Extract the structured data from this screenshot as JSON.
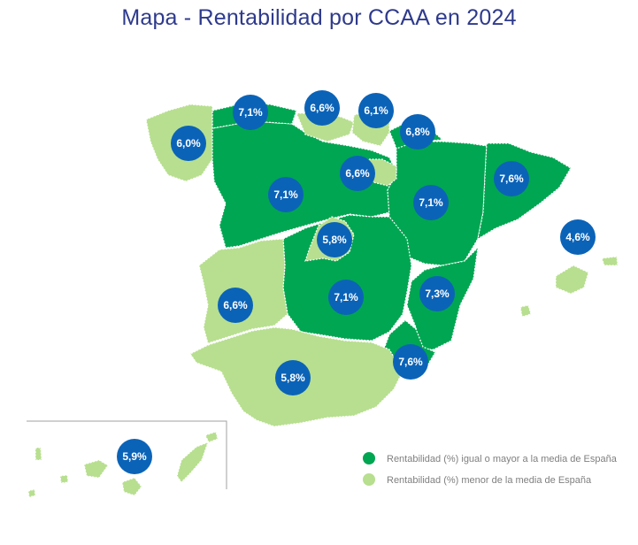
{
  "title": "Mapa - Rentabilidad por CCAA en 2024",
  "colors": {
    "above_or_equal": "#00a651",
    "below": "#b7df8f",
    "marker": "#0b63b8",
    "title": "#2e3a8c"
  },
  "legend": {
    "above_or_equal": "Rentabilidad (%) igual o mayor a la media de España",
    "below": "Rentabilidad (%) menor de la media de España"
  },
  "markers": [
    {
      "id": "galicia",
      "label": "6,0%",
      "category": "below"
    },
    {
      "id": "asturias",
      "label": "7,1%",
      "category": "above_or_equal"
    },
    {
      "id": "cantabria",
      "label": "6,6%",
      "category": "below"
    },
    {
      "id": "pais-vasco",
      "label": "6,1%",
      "category": "below"
    },
    {
      "id": "navarra",
      "label": "6,8%",
      "category": "above_or_equal"
    },
    {
      "id": "la-rioja",
      "label": "6,6%",
      "category": "below"
    },
    {
      "id": "castilla-y-leon",
      "label": "7,1%",
      "category": "above_or_equal"
    },
    {
      "id": "aragon",
      "label": "7,1%",
      "category": "above_or_equal"
    },
    {
      "id": "cataluna",
      "label": "7,6%",
      "category": "above_or_equal"
    },
    {
      "id": "baleares",
      "label": "4,6%",
      "category": "below"
    },
    {
      "id": "madrid",
      "label": "5,8%",
      "category": "below"
    },
    {
      "id": "castilla-la-mancha",
      "label": "7,1%",
      "category": "above_or_equal"
    },
    {
      "id": "comunidad-valenciana",
      "label": "7,3%",
      "category": "above_or_equal"
    },
    {
      "id": "extremadura",
      "label": "6,6%",
      "category": "below"
    },
    {
      "id": "murcia",
      "label": "7,6%",
      "category": "above_or_equal"
    },
    {
      "id": "andalucia",
      "label": "5,8%",
      "category": "below"
    },
    {
      "id": "canarias",
      "label": "5,9%",
      "category": "below"
    }
  ]
}
